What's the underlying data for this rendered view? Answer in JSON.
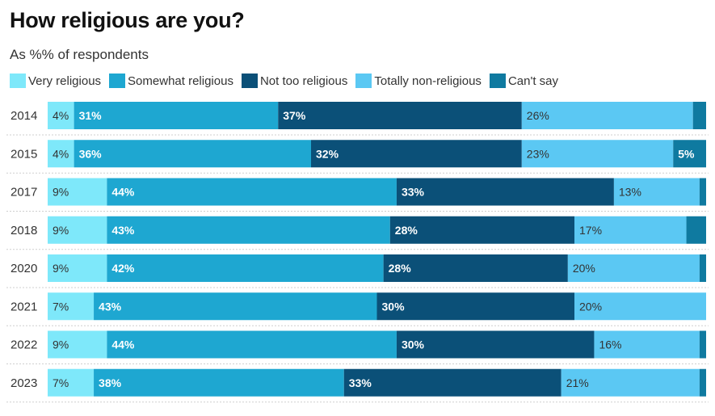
{
  "title": "How religious are you?",
  "subtitle": "As %% of respondents",
  "colors": {
    "very_religious": "#7ee8fa",
    "somewhat_religious": "#1ea7d1",
    "not_too_religious": "#0b5078",
    "totally_non_religious": "#5bc8f3",
    "cant_say": "#0f7aa0",
    "divider": "#cfcfcf"
  },
  "chart_data": {
    "type": "bar",
    "orientation": "horizontal-stacked",
    "title": "How religious are you?",
    "subtitle": "As %% of respondents",
    "xlabel": "",
    "ylabel": "",
    "xlim": [
      0,
      100
    ],
    "legend_position": "top",
    "categories": [
      "2014",
      "2015",
      "2017",
      "2018",
      "2020",
      "2021",
      "2022",
      "2023"
    ],
    "series": [
      {
        "name": "Very religious",
        "color_key": "very_religious",
        "label_color": "#333333",
        "label_weight": "normal",
        "values": [
          4,
          4,
          9,
          9,
          9,
          7,
          9,
          7
        ]
      },
      {
        "name": "Somewhat religious",
        "color_key": "somewhat_religious",
        "label_color": "#ffffff",
        "label_weight": "bold",
        "values": [
          31,
          36,
          44,
          43,
          42,
          43,
          44,
          38
        ]
      },
      {
        "name": "Not too religious",
        "color_key": "not_too_religious",
        "label_color": "#ffffff",
        "label_weight": "bold",
        "values": [
          37,
          32,
          33,
          28,
          28,
          30,
          30,
          33
        ]
      },
      {
        "name": "Totally non-religious",
        "color_key": "totally_non_religious",
        "label_color": "#333333",
        "label_weight": "normal",
        "values": [
          26,
          23,
          13,
          17,
          20,
          20,
          16,
          21
        ]
      },
      {
        "name": "Can't say",
        "color_key": "cant_say",
        "label_color": "#ffffff",
        "label_weight": "bold",
        "values": [
          3,
          5,
          2,
          3,
          1,
          1,
          1,
          1
        ],
        "labels": [
          "",
          "5%",
          "",
          "",
          "",
          "",
          "",
          ""
        ]
      }
    ]
  }
}
